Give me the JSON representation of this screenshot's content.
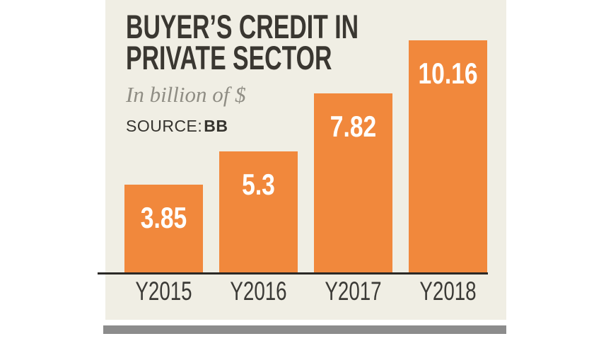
{
  "page": {
    "background": "#FFFFFF"
  },
  "panel": {
    "background": "#F0EEE4"
  },
  "header": {
    "title_line1": "BUYER’S CREDIT IN",
    "title_line2": "PRIVATE SECTOR",
    "subtitle": "In billion of $",
    "source_label": "SOURCE:",
    "source_value": "BB"
  },
  "chart_data": {
    "type": "bar",
    "title": "BUYER’S CREDIT IN PRIVATE SECTOR",
    "unit_label": "In billion of $",
    "source": "BB",
    "categories": [
      "Y2015",
      "Y2016",
      "Y2017",
      "Y2018"
    ],
    "values": [
      3.85,
      5.3,
      7.82,
      10.16
    ],
    "value_labels": [
      "3.85",
      "5.3",
      "7.82",
      "10.16"
    ],
    "ylim": [
      0,
      10.5
    ],
    "grid": false,
    "legend": false,
    "bar_color": "#F1883C",
    "value_label_color": "#FFFFFF",
    "axis_line_color": "#2B2926",
    "divider_color": "#8C8C8C"
  }
}
